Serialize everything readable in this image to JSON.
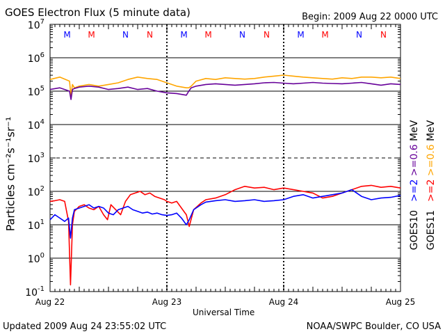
{
  "header": {
    "title": "GOES Electron Flux (5 minute data)",
    "begin": "Begin: 2009 Aug 22 0000 UTC"
  },
  "footer": {
    "updated": "Updated 2009 Aug 24 23:55:02 UTC",
    "credit": "NOAA/SWPC Boulder, CO USA"
  },
  "legend": {
    "goes10": {
      "sat": "GOES10",
      "a": ">=2",
      "b": ">=0.6",
      "unit": "MeV"
    },
    "goes11": {
      "sat": "GOES11",
      "a": ">=2",
      "b": ">=0.6",
      "unit": "MeV"
    }
  },
  "colors": {
    "goes10_2mev": "#0000ff",
    "goes10_06mev": "#660099",
    "goes11_2mev": "#ff0000",
    "goes11_06mev": "#ffa500",
    "marker_m": "#ff0000",
    "marker_n": "#0000ff"
  },
  "chart_data": {
    "type": "line",
    "title": "GOES Electron Flux (5 minute data)",
    "xlabel": "Universal Time",
    "ylabel": "Particles cm⁻²s⁻¹sr⁻¹",
    "yscale": "log",
    "xlim": [
      0,
      72
    ],
    "ylim_exp": [
      -1,
      7
    ],
    "x_unit": "hours since 2009 Aug 22 0000 UTC",
    "x_ticks": [
      {
        "x": 0,
        "label": "Aug 22"
      },
      {
        "x": 24,
        "label": "Aug 23"
      },
      {
        "x": 48,
        "label": "Aug 24"
      },
      {
        "x": 72,
        "label": "Aug 25"
      }
    ],
    "y_ticks": [
      {
        "exp": 7,
        "label": "7"
      },
      {
        "exp": 6,
        "label": "6"
      },
      {
        "exp": 5,
        "label": "5"
      },
      {
        "exp": 4,
        "label": "4"
      },
      {
        "exp": 3,
        "label": "3"
      },
      {
        "exp": 2,
        "label": "2"
      },
      {
        "exp": 1,
        "label": "1"
      },
      {
        "exp": 0,
        "label": "0"
      },
      {
        "exp": -1,
        "label": "-1"
      }
    ],
    "y_tick_base": "10",
    "dashed_gridlines_exp": [
      3
    ],
    "markers": [
      {
        "x": 3.5,
        "label": "M",
        "color": "#0000ff"
      },
      {
        "x": 8.5,
        "label": "M",
        "color": "#ff0000"
      },
      {
        "x": 15.5,
        "label": "N",
        "color": "#0000ff"
      },
      {
        "x": 20.5,
        "label": "N",
        "color": "#ff0000"
      },
      {
        "x": 27.5,
        "label": "M",
        "color": "#0000ff"
      },
      {
        "x": 32.5,
        "label": "M",
        "color": "#ff0000"
      },
      {
        "x": 39.5,
        "label": "N",
        "color": "#0000ff"
      },
      {
        "x": 44.5,
        "label": "N",
        "color": "#ff0000"
      },
      {
        "x": 51.5,
        "label": "M",
        "color": "#0000ff"
      },
      {
        "x": 56.5,
        "label": "M",
        "color": "#ff0000"
      },
      {
        "x": 63.5,
        "label": "N",
        "color": "#0000ff"
      },
      {
        "x": 68.5,
        "label": "N",
        "color": "#ff0000"
      }
    ],
    "series": [
      {
        "name": "GOES11 >=0.6 MeV",
        "color": "#ffa500",
        "x": [
          0,
          2,
          4,
          4.3,
          4.6,
          5,
          6,
          8,
          10,
          12,
          14,
          16,
          18,
          20,
          22,
          24,
          26,
          28,
          28.5,
          29,
          30,
          32,
          34,
          36,
          38,
          40,
          42,
          44,
          46,
          48,
          50,
          52,
          54,
          56,
          58,
          60,
          62,
          64,
          66,
          68,
          70,
          72
        ],
        "y": [
          5.35,
          5.42,
          5.3,
          4.85,
          5.2,
          5.1,
          5.15,
          5.2,
          5.15,
          5.2,
          5.25,
          5.35,
          5.42,
          5.38,
          5.35,
          5.25,
          5.15,
          5.1,
          5.1,
          5.15,
          5.3,
          5.38,
          5.35,
          5.4,
          5.38,
          5.36,
          5.38,
          5.42,
          5.45,
          5.48,
          5.45,
          5.42,
          5.4,
          5.38,
          5.36,
          5.4,
          5.38,
          5.42,
          5.42,
          5.4,
          5.42,
          5.38
        ]
      },
      {
        "name": "GOES10 >=0.6 MeV",
        "color": "#660099",
        "x": [
          0,
          2,
          4,
          4.3,
          4.6,
          5,
          6,
          8,
          10,
          12,
          14,
          16,
          18,
          20,
          22,
          24,
          26,
          28,
          28.5,
          29,
          30,
          32,
          34,
          36,
          38,
          40,
          42,
          44,
          46,
          48,
          50,
          52,
          54,
          56,
          58,
          60,
          62,
          64,
          66,
          68,
          70,
          72
        ],
        "y": [
          5.05,
          5.1,
          5.0,
          4.75,
          5.05,
          5.08,
          5.12,
          5.15,
          5.12,
          5.05,
          5.08,
          5.12,
          5.05,
          5.08,
          5.0,
          4.95,
          4.93,
          4.88,
          5.0,
          5.1,
          5.15,
          5.2,
          5.22,
          5.2,
          5.18,
          5.2,
          5.22,
          5.25,
          5.26,
          5.24,
          5.22,
          5.24,
          5.26,
          5.24,
          5.23,
          5.22,
          5.24,
          5.26,
          5.22,
          5.18,
          5.22,
          5.2
        ]
      },
      {
        "name": "GOES11 >=2 MeV",
        "color": "#ff0000",
        "x": [
          0,
          1,
          2,
          3,
          3.8,
          4.2,
          4.6,
          5,
          6,
          7,
          8,
          9,
          10,
          11,
          11.8,
          12.5,
          13.5,
          14.5,
          15.5,
          16.5,
          17.5,
          18.5,
          19.5,
          20.5,
          21.5,
          22.5,
          23.5,
          24,
          25,
          26,
          27,
          28,
          28.6,
          29.5,
          31,
          32,
          34,
          36,
          38,
          40,
          42,
          44,
          46,
          48,
          50,
          52,
          54,
          56,
          58,
          60,
          62,
          64,
          66,
          68,
          70,
          72
        ],
        "y": [
          1.7,
          1.72,
          1.75,
          1.7,
          1.1,
          -0.8,
          1.0,
          1.4,
          1.55,
          1.6,
          1.5,
          1.45,
          1.55,
          1.3,
          1.15,
          1.6,
          1.45,
          1.3,
          1.7,
          1.9,
          1.95,
          2.0,
          1.9,
          1.95,
          1.85,
          1.8,
          1.75,
          1.7,
          1.65,
          1.7,
          1.5,
          1.3,
          0.95,
          1.45,
          1.65,
          1.75,
          1.8,
          1.9,
          2.05,
          2.15,
          2.1,
          2.12,
          2.05,
          2.1,
          2.05,
          2.0,
          1.95,
          1.8,
          1.85,
          1.95,
          2.05,
          2.15,
          2.18,
          2.12,
          2.15,
          2.1
        ]
      },
      {
        "name": "GOES10 >=2 MeV",
        "color": "#0000ff",
        "x": [
          0,
          1,
          2,
          3,
          3.8,
          4.2,
          4.6,
          5,
          6,
          7,
          8,
          9,
          10,
          11,
          12,
          13,
          14,
          15,
          16,
          17,
          18,
          19,
          20,
          21,
          22,
          23,
          24,
          25,
          26,
          27,
          28,
          28.6,
          29.5,
          31,
          32,
          34,
          36,
          38,
          40,
          42,
          44,
          46,
          48,
          50,
          52,
          54,
          56,
          58,
          60,
          62,
          64,
          66,
          68,
          70,
          72
        ],
        "y": [
          1.15,
          1.3,
          1.2,
          1.1,
          1.2,
          0.6,
          1.2,
          1.45,
          1.5,
          1.55,
          1.6,
          1.5,
          1.55,
          1.5,
          1.35,
          1.3,
          1.45,
          1.5,
          1.55,
          1.45,
          1.4,
          1.35,
          1.38,
          1.32,
          1.35,
          1.3,
          1.28,
          1.3,
          1.35,
          1.2,
          1.0,
          1.15,
          1.45,
          1.6,
          1.68,
          1.72,
          1.75,
          1.7,
          1.72,
          1.75,
          1.7,
          1.72,
          1.75,
          1.85,
          1.9,
          1.8,
          1.85,
          1.9,
          1.95,
          2.05,
          1.85,
          1.75,
          1.8,
          1.82,
          1.88
        ]
      }
    ]
  }
}
